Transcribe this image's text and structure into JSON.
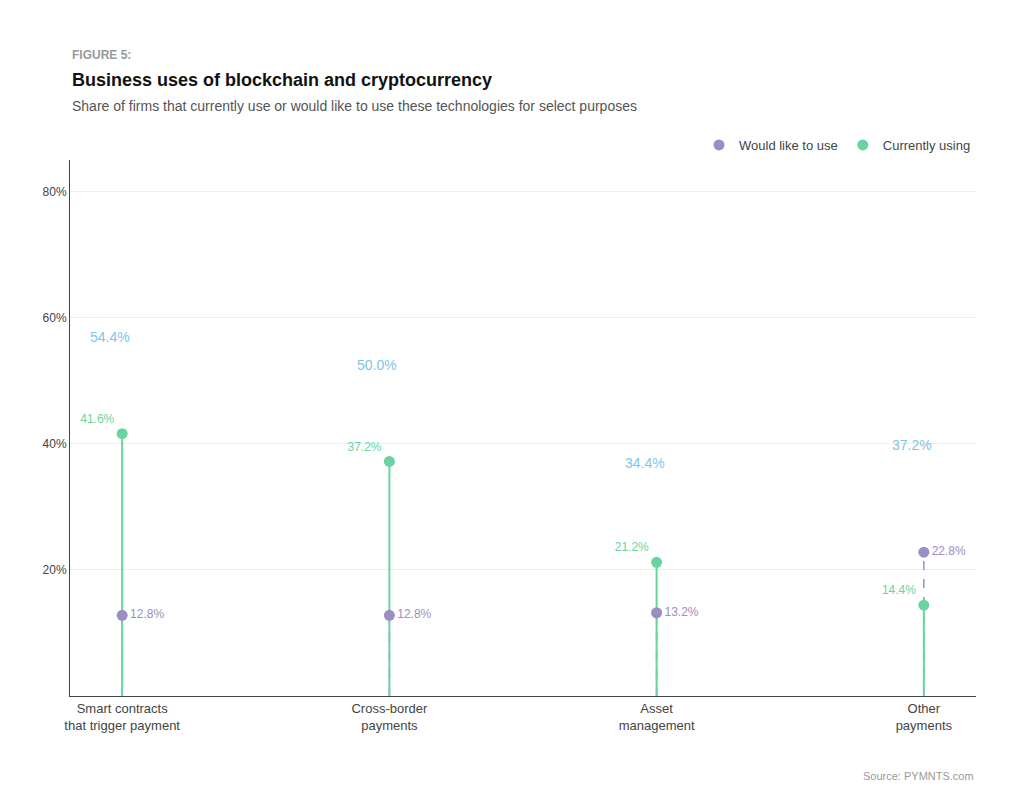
{
  "chart_data": {
    "type": "lollipop",
    "figure_label": "FIGURE 5:",
    "title": "Business uses of blockchain and cryptocurrency",
    "subtitle": "Share of firms that currently use or would like to use these technologies for select purposes",
    "source": "Source: PYMNTS.com",
    "categories": [
      "Smart contracts\nthat trigger payment",
      "Cross-border\npayments",
      "Asset\nmanagement",
      "Other\npayments"
    ],
    "series": [
      {
        "name": "Would like to use",
        "color": "#9b8ec4",
        "values": [
          12.8,
          12.8,
          13.2,
          22.8
        ],
        "value_labels": [
          "12.8%",
          "12.8%",
          "13.2%",
          "22.8%"
        ],
        "line_style": "dashed",
        "marker": "circle"
      },
      {
        "name": "Currently using",
        "color": "#6ad4a0",
        "values": [
          41.6,
          37.2,
          21.2,
          14.4
        ],
        "value_labels": [
          "41.6%",
          "37.2%",
          "21.2%",
          "14.4%"
        ],
        "line_style": "solid",
        "marker": "circle"
      }
    ],
    "annotations": [
      {
        "x": "Smart contracts\nthat trigger payment",
        "y": 54.4,
        "text": "54.4%",
        "color": "#7fc5e8"
      },
      {
        "x": "Cross-border\npayments",
        "y": 50.0,
        "text": "50.0%",
        "color": "#7fc5e8"
      },
      {
        "x": "Asset\nmanagement",
        "y": 34.4,
        "text": "34.4%",
        "color": "#7fc5e8"
      },
      {
        "x": "Other\npayments",
        "y": 37.2,
        "text": "37.2%",
        "color": "#7fc5e8"
      }
    ],
    "ylim": [
      0,
      85
    ],
    "yticks": [
      {
        "value": 20,
        "label": "20%"
      },
      {
        "value": 40,
        "label": "40%"
      },
      {
        "value": 60,
        "label": "60%"
      },
      {
        "value": 80,
        "label": "80%"
      }
    ],
    "grid": true,
    "data_labels": true,
    "legend": "upper right"
  }
}
